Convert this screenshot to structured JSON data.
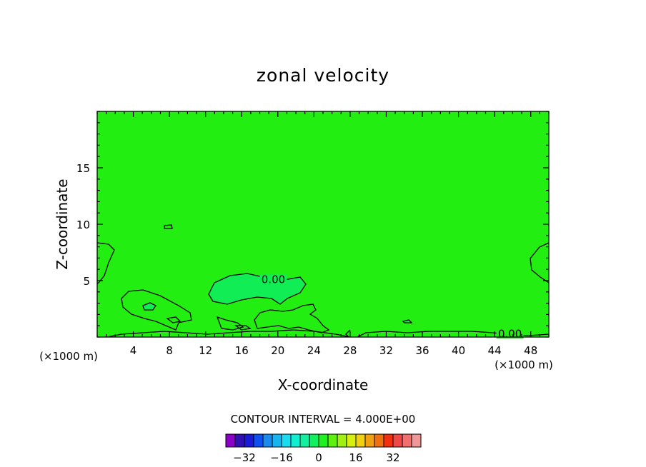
{
  "chart_data": {
    "type": "contour",
    "title": "zonal velocity",
    "xlabel": "X-coordinate",
    "ylabel": "Z-coordinate",
    "x_unit_left": "(×1000 m)",
    "x_unit_right": "(×1000 m)",
    "xlim": [
      0,
      50
    ],
    "ylim": [
      0,
      20
    ],
    "x_ticks": [
      4,
      8,
      12,
      16,
      20,
      24,
      28,
      32,
      36,
      40,
      44,
      48
    ],
    "x_tick_labels": [
      "4",
      "8",
      "12",
      "16",
      "20",
      "24",
      "28",
      "32",
      "36",
      "40",
      "44",
      "48"
    ],
    "y_ticks": [
      5,
      10,
      15
    ],
    "y_tick_labels": [
      "5",
      "10",
      "15"
    ],
    "background_level_color": "#22ee11",
    "highlight_level_color": "#11ee55",
    "contour_labels": [
      {
        "text": "0.00",
        "x": 19.5,
        "y": 5.1
      },
      {
        "text": "0.00",
        "x": 45.7,
        "y": 0.3
      }
    ],
    "contour_interval_text": "CONTOUR INTERVAL = 4.000E+00",
    "colorbar": {
      "colors": [
        "#8a00c8",
        "#3010b0",
        "#1a1ad8",
        "#1050f0",
        "#1a8cf0",
        "#18b4f0",
        "#18dcf0",
        "#10f0d0",
        "#10f0a0",
        "#10f060",
        "#20f020",
        "#60f010",
        "#a0f010",
        "#d8f010",
        "#f0d010",
        "#f0a010",
        "#f07010",
        "#f03010",
        "#f04848",
        "#f07070",
        "#f09898"
      ],
      "tick_labels": [
        "−32",
        "−16",
        "0",
        "16",
        "32"
      ],
      "tick_values": [
        -32,
        -16,
        0,
        16,
        32
      ]
    }
  }
}
